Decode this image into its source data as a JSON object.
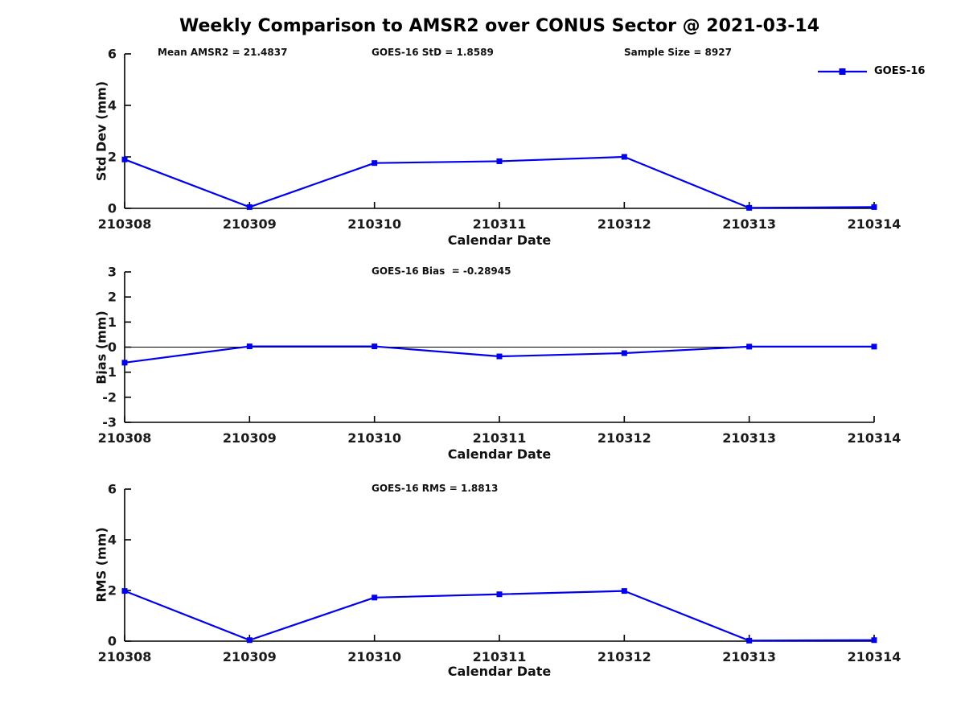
{
  "title": "Weekly Comparison to AMSR2 over CONUS Sector @ 2021-03-14",
  "legend": {
    "label": "GOES-16",
    "color": "#0000EE",
    "marker": "square",
    "position": "top-right"
  },
  "axis": {
    "spine_color": "#000000",
    "tick_label_color": "#1a1a1a"
  },
  "chart_data": [
    {
      "type": "line",
      "name": "std-dev-panel",
      "xlabel": "Calendar Date",
      "ylabel": "Std Dev (mm)",
      "ylim": [
        0,
        6
      ],
      "yticks": [
        0,
        2,
        4,
        6
      ],
      "grid": false,
      "zero_line": false,
      "legend_position": "top-right",
      "categories": [
        "210308",
        "210309",
        "210310",
        "210311",
        "210312",
        "210313",
        "210314"
      ],
      "series": [
        {
          "name": "GOES-16",
          "color": "#0000EE",
          "marker": "square",
          "values": [
            1.9,
            0.05,
            1.76,
            1.83,
            2.0,
            0.02,
            0.05
          ]
        }
      ],
      "annotations": [
        {
          "text": "Mean AMSR2 = 21.4837"
        },
        {
          "text": "GOES-16 StD = 1.8589"
        },
        {
          "text": "Sample Size = 8927"
        }
      ]
    },
    {
      "type": "line",
      "name": "bias-panel",
      "xlabel": "Calendar Date",
      "ylabel": "Bias (mm)",
      "ylim": [
        -3,
        3
      ],
      "yticks": [
        -3,
        -2,
        -1,
        0,
        1,
        2,
        3
      ],
      "grid": false,
      "zero_line": true,
      "categories": [
        "210308",
        "210309",
        "210310",
        "210311",
        "210312",
        "210313",
        "210314"
      ],
      "series": [
        {
          "name": "GOES-16",
          "color": "#0000EE",
          "marker": "square",
          "values": [
            -0.62,
            0.03,
            0.03,
            -0.37,
            -0.24,
            0.02,
            0.02
          ]
        }
      ],
      "annotations": [
        {
          "text": "GOES-16 Bias  = -0.28945"
        }
      ]
    },
    {
      "type": "line",
      "name": "rms-panel",
      "xlabel": "Calendar Date",
      "ylabel": "RMS (mm)",
      "ylim": [
        0,
        6
      ],
      "yticks": [
        0,
        2,
        4,
        6
      ],
      "grid": false,
      "zero_line": false,
      "categories": [
        "210308",
        "210309",
        "210310",
        "210311",
        "210312",
        "210313",
        "210314"
      ],
      "series": [
        {
          "name": "GOES-16",
          "color": "#0000EE",
          "marker": "square",
          "values": [
            1.98,
            0.04,
            1.72,
            1.85,
            1.98,
            0.02,
            0.04
          ]
        }
      ],
      "annotations": [
        {
          "text": "GOES-16 RMS = 1.8813"
        }
      ]
    }
  ]
}
